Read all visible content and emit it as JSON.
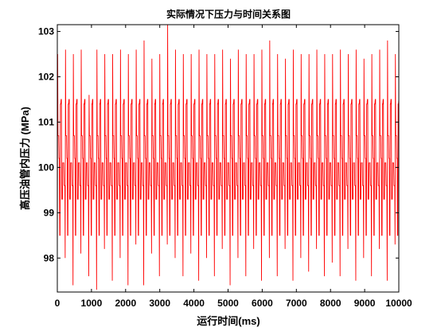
{
  "chart_data": {
    "type": "line",
    "title": "实际情况下压力与时间关系图",
    "xlabel": "运行时间(ms)",
    "ylabel": "高压油管内压力 (MPa)",
    "xlim": [
      0,
      10000
    ],
    "ylim": [
      97.25,
      103.15
    ],
    "x_ticks": [
      0,
      1000,
      2000,
      3000,
      4000,
      5000,
      6000,
      7000,
      8000,
      9000,
      10000
    ],
    "x_tick_labels": [
      "0",
      "1000",
      "2000",
      "3000",
      "4000",
      "5000",
      "6000",
      "7000",
      "8000",
      "9000",
      "10000"
    ],
    "y_ticks": [
      98,
      99,
      100,
      101,
      102,
      103
    ],
    "y_tick_labels": [
      "98",
      "99",
      "100",
      "101",
      "102",
      "103"
    ],
    "grid": false,
    "line_color": "#ff0000",
    "series": [
      {
        "values_description_free": true,
        "x_start": 0,
        "x_step": 10,
        "period_steps": 23,
        "cycle_pattern": [
          97.6,
          102.5,
          100.7,
          100.7,
          100.7,
          100.2,
          100.2,
          98.5,
          98.5,
          101.4,
          101.4,
          101.5,
          101.5,
          99.3,
          99.3,
          99.3,
          100.1,
          100.1,
          100.1,
          100.1,
          99.6,
          99.6,
          99.6
        ],
        "peak_values": [
          102.5,
          102.6,
          102.5,
          102.6,
          101.6,
          102.6,
          102.5,
          102.5,
          102.6,
          102.5,
          102.6,
          102.8,
          102.4,
          102.5,
          103.2,
          102.6,
          102.5,
          102.5,
          102.6,
          102.5,
          102.5,
          102.6,
          102.4,
          102.6,
          102.5,
          102.5,
          102.6,
          102.8,
          102.5,
          102.4,
          102.6,
          102.5,
          102.5,
          102.6,
          102.5,
          102.5,
          102.6,
          102.5,
          102.6,
          102.4,
          102.5,
          102.6,
          102.8,
          102.5
        ],
        "trough_values": [
          97.6,
          98.0,
          97.4,
          98.1,
          97.6,
          97.3,
          98.2,
          97.5,
          98.0,
          97.4,
          98.3,
          97.4,
          98.1,
          97.6,
          98.3,
          98.0,
          97.6,
          98.1,
          97.5,
          98.0,
          97.6,
          98.2,
          97.4,
          98.0,
          97.6,
          98.2,
          97.5,
          98.0,
          97.6,
          98.2,
          97.5,
          98.0,
          97.7,
          98.2,
          97.6,
          97.9,
          97.6,
          98.2,
          97.5,
          98.0,
          97.6,
          98.2,
          97.5,
          98.3
        ]
      }
    ]
  }
}
